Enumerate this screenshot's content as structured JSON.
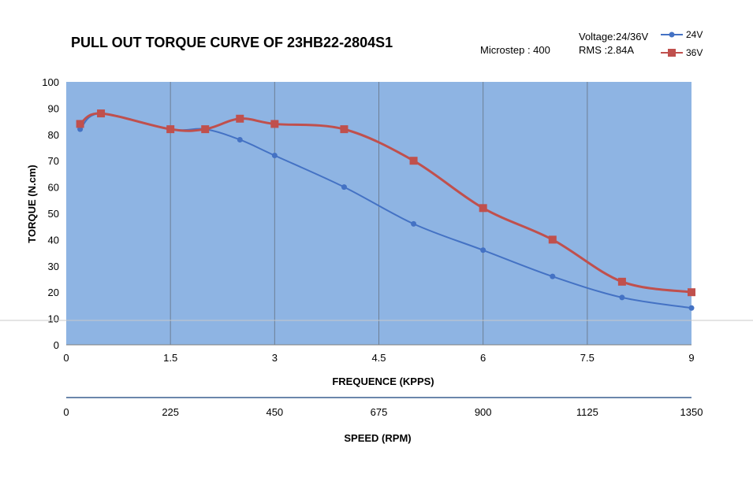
{
  "chart_data": {
    "type": "line",
    "title": "PULL OUT TORQUE CURVE OF 23HB22-2804S1",
    "info": {
      "microstep": "Microstep : 400",
      "voltage": "Voltage:24/36V",
      "rms": "RMS :2.84A"
    },
    "xlabel": "FREQUENCE (KPPS)",
    "x2label": "SPEED (RPM)",
    "ylabel": "TORQUE (N.cm)",
    "xlim": [
      0,
      9
    ],
    "ylim": [
      0,
      100
    ],
    "xticks": [
      "0",
      "1.5",
      "3",
      "4.5",
      "6",
      "7.5",
      "9"
    ],
    "x2ticks": [
      "0",
      "225",
      "450",
      "675",
      "900",
      "1125",
      "1350"
    ],
    "yticks": [
      "0",
      "10",
      "20",
      "30",
      "40",
      "50",
      "60",
      "70",
      "80",
      "90",
      "100"
    ],
    "grid": "vertical",
    "legend": "top-right",
    "series": [
      {
        "name": "24V",
        "color": "#4472c4",
        "marker": "circle",
        "x": [
          0.2,
          0.5,
          1.5,
          2.0,
          2.5,
          3.0,
          4.0,
          5.0,
          6.0,
          7.0,
          8.0,
          9.0
        ],
        "y": [
          82,
          88,
          82,
          82,
          78,
          72,
          60,
          46,
          36,
          26,
          18,
          14
        ]
      },
      {
        "name": "36V",
        "color": "#c0504d",
        "marker": "square",
        "x": [
          0.2,
          0.5,
          1.5,
          2.0,
          2.5,
          3.0,
          4.0,
          5.0,
          6.0,
          7.0,
          8.0,
          9.0
        ],
        "y": [
          84,
          88,
          82,
          82,
          86,
          84,
          82,
          70,
          52,
          40,
          24,
          20
        ]
      }
    ]
  }
}
